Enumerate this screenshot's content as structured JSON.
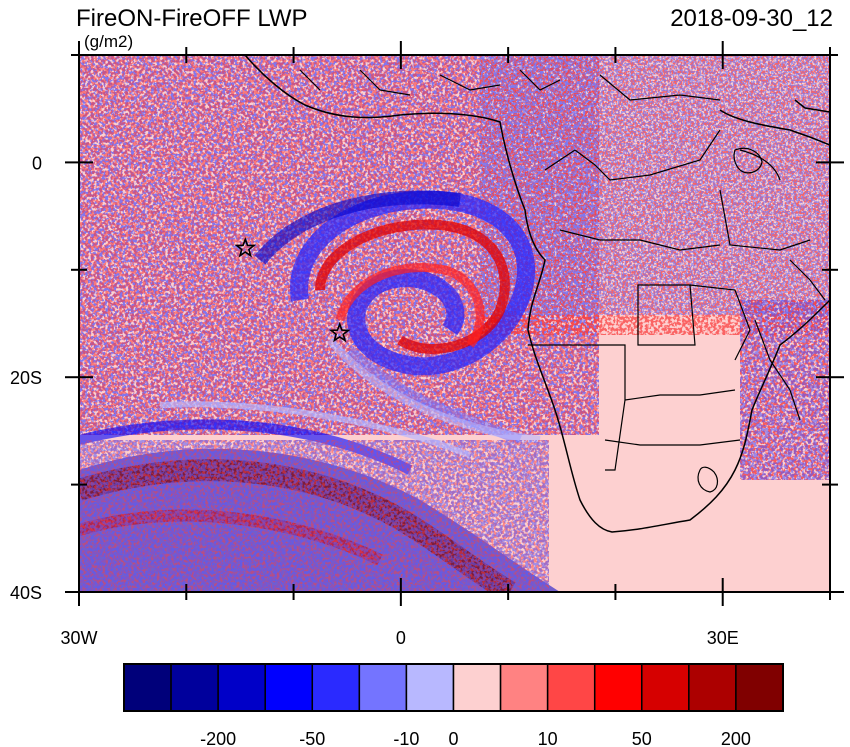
{
  "title_left": "FireON-FireOFF LWP",
  "title_right": "2018-09-30_12",
  "units": "(g/m2)",
  "map": {
    "lon_range": [
      -30,
      40
    ],
    "lat_range": [
      -40,
      10
    ],
    "lat_ticks": [
      {
        "value": 0,
        "label": "0"
      },
      {
        "value": -20,
        "label": "20S"
      },
      {
        "value": -40,
        "label": "40S"
      }
    ],
    "lon_ticks": [
      {
        "value": -30,
        "label": "30W"
      },
      {
        "value": 0,
        "label": "0"
      },
      {
        "value": 30,
        "label": "30E"
      }
    ],
    "markers": [
      {
        "lon": -14.5,
        "lat": -8.0,
        "symbol": "star"
      },
      {
        "lon": -5.7,
        "lat": -15.9,
        "symbol": "star"
      }
    ],
    "background_color": "#fdd0d0"
  },
  "colorbar": {
    "colors": [
      "#00007a",
      "#00009c",
      "#0000c8",
      "#0000ff",
      "#2a2aff",
      "#7474ff",
      "#b8b8ff",
      "#fdd0d0",
      "#ff8282",
      "#ff4646",
      "#ff0000",
      "#d60000",
      "#ac0000",
      "#800000"
    ],
    "labels": [
      {
        "after_box": 2,
        "text": "-200"
      },
      {
        "after_box": 4,
        "text": "-50"
      },
      {
        "after_box": 6,
        "text": "-10"
      },
      {
        "after_box": 7,
        "text": "0"
      },
      {
        "after_box": 9,
        "text": "10"
      },
      {
        "after_box": 11,
        "text": "50"
      },
      {
        "after_box": 13,
        "text": "200"
      }
    ]
  }
}
